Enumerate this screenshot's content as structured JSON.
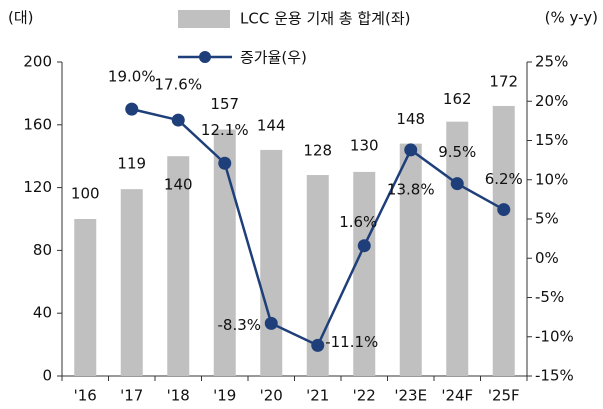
{
  "chart_data": {
    "type": "bar-line",
    "y_label": "(대)",
    "y2_label": "(% y-y)",
    "categories": [
      "'16",
      "'17",
      "'18",
      "'19",
      "'20",
      "'21",
      "'22",
      "'23E",
      "'24F",
      "'25F"
    ],
    "series": [
      {
        "name": "LCC 운용 기재 총 합계(좌)",
        "type": "bar",
        "color": "#c0c0c0",
        "values": [
          100,
          119,
          140,
          157,
          144,
          128,
          130,
          148,
          162,
          172
        ]
      },
      {
        "name": "증가율(우)",
        "type": "line",
        "axis": "y2",
        "color": "#1f3f7a",
        "values": [
          null,
          19.0,
          17.6,
          12.1,
          -8.3,
          -11.1,
          1.6,
          13.8,
          9.5,
          6.2
        ],
        "value_labels": [
          null,
          "19.0%",
          "17.6%",
          "12.1%",
          "-8.3%",
          "-11.1%",
          "1.6%",
          "13.8%",
          "9.5%",
          "6.2%"
        ]
      }
    ],
    "ylim": [
      0,
      200
    ],
    "yticks": [
      0,
      40,
      80,
      120,
      160,
      200
    ],
    "y2lim": [
      -15,
      25
    ],
    "y2ticks": [
      {
        "value": -15,
        "label": "-15%"
      },
      {
        "value": -10,
        "label": "-10%"
      },
      {
        "value": -5,
        "label": "-5%"
      },
      {
        "value": 0,
        "label": "0%"
      },
      {
        "value": 5,
        "label": "5%"
      },
      {
        "value": 10,
        "label": "10%"
      },
      {
        "value": 15,
        "label": "15%"
      },
      {
        "value": 20,
        "label": "20%"
      },
      {
        "value": 25,
        "label": "25%"
      }
    ]
  }
}
